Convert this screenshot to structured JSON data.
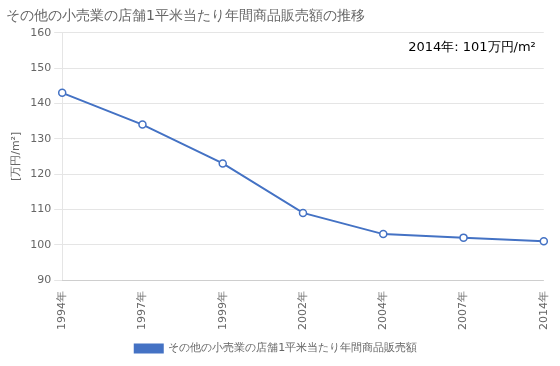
{
  "chart_data": {
    "type": "line",
    "title": "その他の小売業の店舗1平米当たり年間商品販売額の推移",
    "y_label": "[万円/m²]",
    "annotation": "2014年: 101万円/m²",
    "categories": [
      "1994年",
      "1997年",
      "1999年",
      "2002年",
      "2004年",
      "2007年",
      "2014年"
    ],
    "series": [
      {
        "name": "その他の小売業の店舗1平米当たり年間商品販売額",
        "color": "#4472C4",
        "marker": "circle",
        "values": [
          143,
          134,
          123,
          109,
          103,
          102,
          101
        ]
      }
    ],
    "ylim": [
      90,
      160
    ],
    "yticks": [
      90,
      100,
      110,
      120,
      130,
      140,
      150,
      160
    ],
    "grid": true,
    "legend": "bottom"
  }
}
